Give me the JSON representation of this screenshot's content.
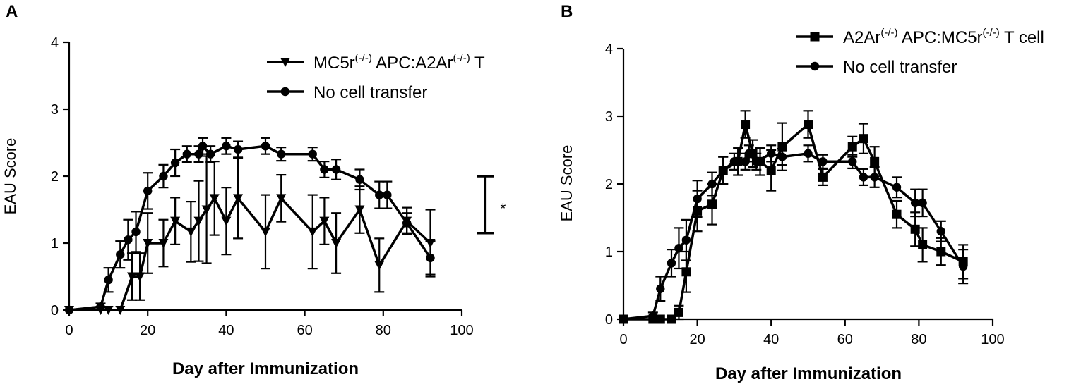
{
  "chart_data": [
    {
      "panel_label": "A",
      "type": "line",
      "xlabel": "Day after Immunization",
      "ylabel": "EAU Score",
      "xlim": [
        0,
        100
      ],
      "ylim": [
        0,
        4
      ],
      "xticks": [
        0,
        20,
        40,
        60,
        80,
        100
      ],
      "yticks": [
        0,
        1,
        2,
        3,
        4
      ],
      "legend_position": "top-right",
      "significance": {
        "label": "*",
        "y_range": [
          1.15,
          2.0
        ],
        "x": 106
      },
      "series": [
        {
          "name": "MC5r(-/-) APC:A2Ar(-/-) T",
          "name_base": "MC5r",
          "name_sup": "(-/-)",
          "name_mid": " APC:A2Ar",
          "name_sup2": "(-/-)",
          "name_end": " T",
          "marker": "triangle-down",
          "color": "#000000",
          "points": [
            {
              "x": 0,
              "y": 0,
              "err": 0
            },
            {
              "x": 8,
              "y": 0,
              "err": 0
            },
            {
              "x": 10,
              "y": 0,
              "err": 0
            },
            {
              "x": 13,
              "y": 0,
              "err": 0
            },
            {
              "x": 16,
              "y": 0.5,
              "err": 0.35
            },
            {
              "x": 18,
              "y": 0.5,
              "err": 0.35
            },
            {
              "x": 20,
              "y": 1.0,
              "err": 0.45
            },
            {
              "x": 24,
              "y": 1.0,
              "err": 0.35
            },
            {
              "x": 27,
              "y": 1.33,
              "err": 0.35
            },
            {
              "x": 31,
              "y": 1.17,
              "err": 0.45
            },
            {
              "x": 33,
              "y": 1.33,
              "err": 0.6
            },
            {
              "x": 35,
              "y": 1.5,
              "err": 0.8
            },
            {
              "x": 37,
              "y": 1.67,
              "err": 0.55
            },
            {
              "x": 40,
              "y": 1.33,
              "err": 0.5
            },
            {
              "x": 43,
              "y": 1.67,
              "err": 0.6
            },
            {
              "x": 50,
              "y": 1.17,
              "err": 0.55
            },
            {
              "x": 54,
              "y": 1.67,
              "err": 0.35
            },
            {
              "x": 62,
              "y": 1.17,
              "err": 0.55
            },
            {
              "x": 65,
              "y": 1.33,
              "err": 0.35
            },
            {
              "x": 68,
              "y": 1.0,
              "err": 0.45
            },
            {
              "x": 74,
              "y": 1.5,
              "err": 0.35
            },
            {
              "x": 79,
              "y": 0.67,
              "err": 0.4
            },
            {
              "x": 86,
              "y": 1.33,
              "err": 0.2
            },
            {
              "x": 92,
              "y": 1.0,
              "err": 0.5
            }
          ]
        },
        {
          "name": "No cell transfer",
          "marker": "circle",
          "color": "#000000",
          "points": [
            {
              "x": 0,
              "y": 0,
              "err": 0
            },
            {
              "x": 8,
              "y": 0.05,
              "err": 0.05
            },
            {
              "x": 10,
              "y": 0.45,
              "err": 0.18
            },
            {
              "x": 13,
              "y": 0.83,
              "err": 0.2
            },
            {
              "x": 15,
              "y": 1.05,
              "err": 0.3
            },
            {
              "x": 17,
              "y": 1.17,
              "err": 0.3
            },
            {
              "x": 20,
              "y": 1.78,
              "err": 0.27
            },
            {
              "x": 24,
              "y": 2.0,
              "err": 0.17
            },
            {
              "x": 27,
              "y": 2.2,
              "err": 0.2
            },
            {
              "x": 30,
              "y": 2.33,
              "err": 0.12
            },
            {
              "x": 33,
              "y": 2.33,
              "err": 0.12
            },
            {
              "x": 34,
              "y": 2.45,
              "err": 0.12
            },
            {
              "x": 36,
              "y": 2.33,
              "err": 0.12
            },
            {
              "x": 40,
              "y": 2.45,
              "err": 0.12
            },
            {
              "x": 43,
              "y": 2.4,
              "err": 0.12
            },
            {
              "x": 50,
              "y": 2.45,
              "err": 0.12
            },
            {
              "x": 54,
              "y": 2.33,
              "err": 0.1
            },
            {
              "x": 62,
              "y": 2.33,
              "err": 0.1
            },
            {
              "x": 65,
              "y": 2.1,
              "err": 0.12
            },
            {
              "x": 68,
              "y": 2.1,
              "err": 0.15
            },
            {
              "x": 74,
              "y": 1.95,
              "err": 0.15
            },
            {
              "x": 79,
              "y": 1.72,
              "err": 0.2
            },
            {
              "x": 81,
              "y": 1.72,
              "err": 0.2
            },
            {
              "x": 86,
              "y": 1.3,
              "err": 0.15
            },
            {
              "x": 92,
              "y": 0.78,
              "err": 0.25
            }
          ]
        }
      ]
    },
    {
      "panel_label": "B",
      "type": "line",
      "xlabel": "Day after Immunization",
      "ylabel": "EAU Score",
      "xlim": [
        0,
        100
      ],
      "ylim": [
        0,
        4
      ],
      "xticks": [
        0,
        20,
        40,
        60,
        80,
        100
      ],
      "yticks": [
        0,
        1,
        2,
        3,
        4
      ],
      "legend_position": "top-right",
      "series": [
        {
          "name": "A2Ar(-/-) APC:MC5r(-/-) T cell",
          "name_base": "A2Ar",
          "name_sup": "(-/-)",
          "name_mid": " APC:MC5r",
          "name_sup2": "(-/-)",
          "name_end": " T cell",
          "marker": "square",
          "color": "#000000",
          "points": [
            {
              "x": 0,
              "y": 0,
              "err": 0
            },
            {
              "x": 8,
              "y": 0,
              "err": 0
            },
            {
              "x": 10,
              "y": 0,
              "err": 0
            },
            {
              "x": 13,
              "y": 0,
              "err": 0
            },
            {
              "x": 15,
              "y": 0.1,
              "err": 0.1
            },
            {
              "x": 17,
              "y": 0.7,
              "err": 0.3
            },
            {
              "x": 20,
              "y": 1.6,
              "err": 0.3
            },
            {
              "x": 24,
              "y": 1.7,
              "err": 0.3
            },
            {
              "x": 27,
              "y": 2.2,
              "err": 0.2
            },
            {
              "x": 31,
              "y": 2.33,
              "err": 0.2
            },
            {
              "x": 33,
              "y": 2.88,
              "err": 0.2
            },
            {
              "x": 35,
              "y": 2.45,
              "err": 0.2
            },
            {
              "x": 37,
              "y": 2.33,
              "err": 0.2
            },
            {
              "x": 40,
              "y": 2.2,
              "err": 0.3
            },
            {
              "x": 43,
              "y": 2.55,
              "err": 0.35
            },
            {
              "x": 50,
              "y": 2.88,
              "err": 0.2
            },
            {
              "x": 54,
              "y": 2.1,
              "err": 0.12
            },
            {
              "x": 62,
              "y": 2.55,
              "err": 0.15
            },
            {
              "x": 65,
              "y": 2.67,
              "err": 0.22
            },
            {
              "x": 68,
              "y": 2.33,
              "err": 0.22
            },
            {
              "x": 74,
              "y": 1.55,
              "err": 0.2
            },
            {
              "x": 79,
              "y": 1.33,
              "err": 0.25
            },
            {
              "x": 81,
              "y": 1.1,
              "err": 0.25
            },
            {
              "x": 86,
              "y": 1.0,
              "err": 0.2
            },
            {
              "x": 92,
              "y": 0.85,
              "err": 0.25
            }
          ]
        },
        {
          "name": "No cell transfer",
          "marker": "circle",
          "color": "#000000",
          "points": [
            {
              "x": 0,
              "y": 0,
              "err": 0
            },
            {
              "x": 8,
              "y": 0.05,
              "err": 0.05
            },
            {
              "x": 10,
              "y": 0.45,
              "err": 0.18
            },
            {
              "x": 13,
              "y": 0.83,
              "err": 0.2
            },
            {
              "x": 15,
              "y": 1.05,
              "err": 0.3
            },
            {
              "x": 17,
              "y": 1.17,
              "err": 0.3
            },
            {
              "x": 20,
              "y": 1.78,
              "err": 0.27
            },
            {
              "x": 24,
              "y": 2.0,
              "err": 0.17
            },
            {
              "x": 27,
              "y": 2.2,
              "err": 0.2
            },
            {
              "x": 30,
              "y": 2.33,
              "err": 0.12
            },
            {
              "x": 33,
              "y": 2.33,
              "err": 0.12
            },
            {
              "x": 34,
              "y": 2.45,
              "err": 0.12
            },
            {
              "x": 36,
              "y": 2.33,
              "err": 0.12
            },
            {
              "x": 40,
              "y": 2.45,
              "err": 0.12
            },
            {
              "x": 43,
              "y": 2.4,
              "err": 0.12
            },
            {
              "x": 50,
              "y": 2.45,
              "err": 0.12
            },
            {
              "x": 54,
              "y": 2.33,
              "err": 0.1
            },
            {
              "x": 62,
              "y": 2.33,
              "err": 0.1
            },
            {
              "x": 65,
              "y": 2.1,
              "err": 0.12
            },
            {
              "x": 68,
              "y": 2.1,
              "err": 0.15
            },
            {
              "x": 74,
              "y": 1.95,
              "err": 0.15
            },
            {
              "x": 79,
              "y": 1.72,
              "err": 0.2
            },
            {
              "x": 81,
              "y": 1.72,
              "err": 0.2
            },
            {
              "x": 86,
              "y": 1.3,
              "err": 0.15
            },
            {
              "x": 92,
              "y": 0.78,
              "err": 0.25
            }
          ]
        }
      ]
    }
  ]
}
